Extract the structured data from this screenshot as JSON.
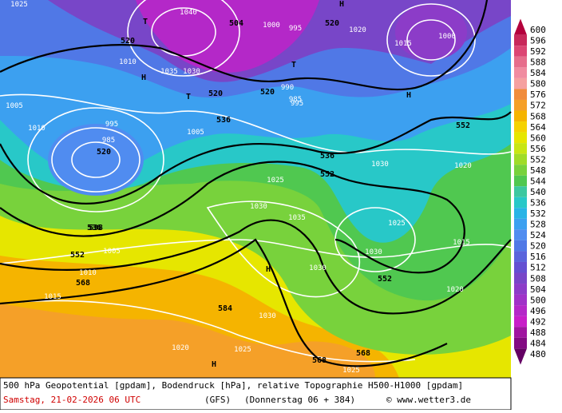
{
  "map": {
    "labels": [
      "1025",
      "1040",
      "504",
      "1000",
      "995",
      "520",
      "1020",
      "1015",
      "1000",
      "520",
      "520",
      "1010",
      "1035",
      "1030",
      "520",
      "990",
      "985",
      "995",
      "536",
      "1005",
      "536",
      "1005",
      "1010",
      "985",
      "995",
      "520",
      "552",
      "1030",
      "1025",
      "1020",
      "538",
      "1030",
      "552",
      "568",
      "1025",
      "1035",
      "1030",
      "552",
      "536",
      "1005",
      "552",
      "568",
      "1010",
      "1015",
      "1030",
      "1015",
      "584",
      "1030",
      "1020",
      "1025",
      "568",
      "1025",
      "1020",
      "H",
      "T",
      "H",
      "H",
      "T",
      "T",
      "H",
      "H"
    ]
  },
  "legend": {
    "items": [
      {
        "value": 600,
        "color": "#b4003c"
      },
      {
        "value": 596,
        "color": "#c8285a"
      },
      {
        "value": 592,
        "color": "#dc4673"
      },
      {
        "value": 588,
        "color": "#e66e8c"
      },
      {
        "value": 584,
        "color": "#f08ca0"
      },
      {
        "value": 580,
        "color": "#f5a0a0"
      },
      {
        "value": 576,
        "color": "#f08c3c"
      },
      {
        "value": 572,
        "color": "#f5a028"
      },
      {
        "value": 568,
        "color": "#f5b400"
      },
      {
        "value": 564,
        "color": "#f5d200"
      },
      {
        "value": 560,
        "color": "#e6e600"
      },
      {
        "value": 556,
        "color": "#c8e614"
      },
      {
        "value": 552,
        "color": "#a0dc28"
      },
      {
        "value": 548,
        "color": "#78d23c"
      },
      {
        "value": 544,
        "color": "#50c850"
      },
      {
        "value": 540,
        "color": "#3cc8a0"
      },
      {
        "value": 536,
        "color": "#28c8c8"
      },
      {
        "value": 532,
        "color": "#28b4e6"
      },
      {
        "value": 528,
        "color": "#3ca0f0"
      },
      {
        "value": 524,
        "color": "#508cf0"
      },
      {
        "value": 520,
        "color": "#5078e6"
      },
      {
        "value": 516,
        "color": "#5a64dc"
      },
      {
        "value": 512,
        "color": "#6450d2"
      },
      {
        "value": 508,
        "color": "#7846c8"
      },
      {
        "value": 504,
        "color": "#8c3cc8"
      },
      {
        "value": 500,
        "color": "#a032c8"
      },
      {
        "value": 496,
        "color": "#b428c8"
      },
      {
        "value": 492,
        "color": "#c81ec8"
      },
      {
        "value": 488,
        "color": "#a014a0"
      },
      {
        "value": 484,
        "color": "#820a82"
      },
      {
        "value": 480,
        "color": "#640064"
      }
    ]
  },
  "footer": {
    "line1": "500 hPa Geopotential [gpdam], Bodendruck [hPa], relative Topographie H500-H1000 [gpdam]",
    "date": "Samstag, 21-02-2026  06 UTC",
    "model": "(GFS)",
    "run": "(Donnerstag 06 + 384)",
    "copyright": "© www.wetter3.de"
  }
}
